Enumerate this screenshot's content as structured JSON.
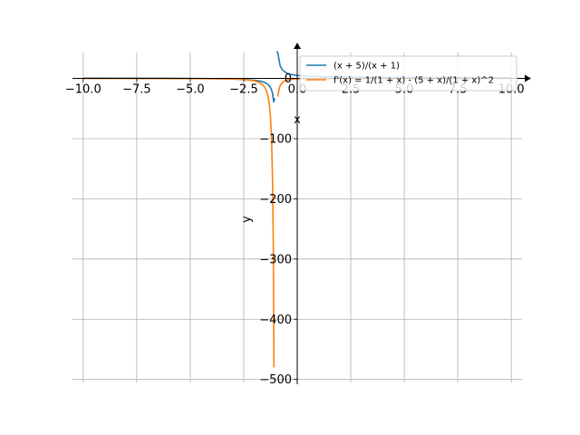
{
  "chart_data": {
    "type": "line",
    "xlabel": "x",
    "ylabel": "y",
    "xlim": [
      -10.5,
      10.5
    ],
    "ylim": [
      -505,
      43
    ],
    "grid": true,
    "legend_position": "top-right",
    "x_ticks": [
      -10.0,
      -7.5,
      -5.0,
      -2.5,
      0.0,
      2.5,
      5.0,
      7.5,
      10.0
    ],
    "x_tick_labels": [
      "−10.0",
      "−7.5",
      "−5.0",
      "−2.5",
      "0.0",
      "2.5",
      "5.0",
      "7.5",
      "10.0"
    ],
    "y_ticks": [
      0,
      -100,
      -200,
      -300,
      -400,
      -500
    ],
    "y_tick_labels": [
      "0",
      "−100",
      "−200",
      "−300",
      "−400",
      "−500"
    ],
    "series": [
      {
        "name": "(x + 5)/(x + 1)",
        "color": "#1f77b4",
        "x": [
          -10,
          -8,
          -6,
          -4,
          -3,
          -2.5,
          -2,
          -1.7,
          -1.5,
          -1.4,
          -1.3,
          -1.2,
          -1.15,
          -1.1,
          -1.05,
          -0.95,
          -0.9,
          -0.8,
          -0.7,
          -0.5,
          -0.3,
          0,
          0.5,
          1,
          2,
          4,
          7,
          10
        ],
        "y": [
          0.56,
          0.43,
          0.2,
          -0.33,
          -1,
          -1.67,
          -3,
          -4.71,
          -7,
          -9,
          -12.33,
          -19,
          -25.67,
          -39,
          -33.13,
          45.47,
          41,
          21,
          14.33,
          9,
          6.71,
          5,
          3.67,
          3,
          2.33,
          1.8,
          1.5,
          1.36
        ]
      },
      {
        "name": "f'(x) = 1/(1 + x) - (5 + x)/(1 + x)^2",
        "color": "#ff7f0e",
        "x": [
          -10,
          -8,
          -6,
          -4,
          -3,
          -2.5,
          -2,
          -1.8,
          -1.6,
          -1.5,
          -1.45,
          -1.4,
          -1.35,
          -1.3,
          -1.25,
          -1.2,
          -1.15,
          -1.12,
          -1.1,
          -1.09,
          -0.91,
          -0.85,
          -0.8,
          -0.7,
          -0.6,
          -0.5,
          -0.3,
          0,
          1,
          3,
          6,
          10
        ],
        "y": [
          -0.05,
          -0.08,
          -0.16,
          -0.44,
          -1,
          -1.78,
          -4,
          -6.25,
          -11.11,
          -16,
          -19.75,
          -25,
          -32.65,
          -44.44,
          -64,
          -100,
          -177.78,
          -277.78,
          -400,
          -480,
          -30,
          -17.78,
          -12,
          -7.06,
          -4.44,
          -2.78,
          -1.46,
          -0.8,
          -0.5,
          -0.25,
          -0.12,
          -0.05
        ]
      }
    ]
  }
}
